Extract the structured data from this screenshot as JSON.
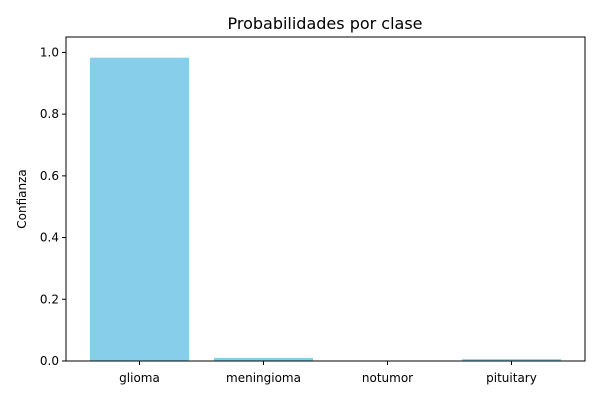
{
  "chart_data": {
    "type": "bar",
    "title": "Probabilidades por clase",
    "xlabel": "",
    "ylabel": "Confianza",
    "categories": [
      "glioma",
      "meningioma",
      "notumor",
      "pituitary"
    ],
    "values": [
      0.983,
      0.01,
      0.001,
      0.006
    ],
    "ylim": [
      0,
      1.05
    ],
    "yticks": [
      0.0,
      0.2,
      0.4,
      0.6,
      0.8,
      1.0
    ],
    "ytick_labels": [
      "0.0",
      "0.2",
      "0.4",
      "0.6",
      "0.8",
      "1.0"
    ],
    "bar_color": "#87ceeb",
    "grid": false,
    "legend": "none"
  }
}
